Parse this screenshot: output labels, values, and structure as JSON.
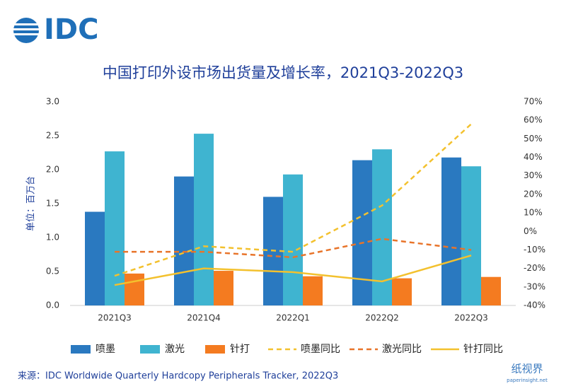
{
  "logo": "IDC",
  "chart_data": {
    "type": "bar",
    "title": "中国打印外设市场出货量及增长率，2021Q3-2022Q3",
    "y_label": "单位：百万台",
    "categories": [
      "2021Q3",
      "2021Q4",
      "2022Q1",
      "2022Q2",
      "2022Q3"
    ],
    "series": [
      {
        "name": "喷墨",
        "type": "bar",
        "color": "#2a79c0",
        "values": [
          1.38,
          1.9,
          1.6,
          2.14,
          2.18
        ]
      },
      {
        "name": "激光",
        "type": "bar",
        "color": "#3fb4d0",
        "values": [
          2.27,
          2.53,
          1.93,
          2.3,
          2.05
        ]
      },
      {
        "name": "针打",
        "type": "bar",
        "color": "#f47b20",
        "values": [
          0.47,
          0.51,
          0.43,
          0.4,
          0.42
        ]
      },
      {
        "name": "喷墨同比",
        "type": "line",
        "dash": true,
        "axis": "y2",
        "color": "#f3c12e",
        "values": [
          -24,
          -8,
          -11,
          14,
          58
        ]
      },
      {
        "name": "激光同比",
        "type": "line",
        "dash": true,
        "axis": "y2",
        "color": "#e8742a",
        "values": [
          -11,
          -11,
          -14,
          -4,
          -10
        ]
      },
      {
        "name": "针打同比",
        "type": "line",
        "dash": false,
        "axis": "y2",
        "color": "#f3c12e",
        "values": [
          -29,
          -20,
          -22,
          -27,
          -13
        ]
      }
    ],
    "ylim": [
      0,
      3
    ],
    "yticks": [
      {
        "value": 0,
        "label": "0.0"
      },
      {
        "value": 0.5,
        "label": "0.5"
      },
      {
        "value": 1,
        "label": "1.0"
      },
      {
        "value": 1.5,
        "label": "1.5"
      },
      {
        "value": 2,
        "label": "2.0"
      },
      {
        "value": 2.5,
        "label": "2.5"
      },
      {
        "value": 3,
        "label": "3.0"
      }
    ],
    "y2lim": [
      -40,
      70
    ],
    "y2ticks": [
      {
        "value": -40,
        "label": "-40%"
      },
      {
        "value": -30,
        "label": "-30%"
      },
      {
        "value": -20,
        "label": "-20%"
      },
      {
        "value": -10,
        "label": "-10%"
      },
      {
        "value": 0,
        "label": "0%"
      },
      {
        "value": 10,
        "label": "10%"
      },
      {
        "value": 20,
        "label": "20%"
      },
      {
        "value": 30,
        "label": "30%"
      },
      {
        "value": 40,
        "label": "40%"
      },
      {
        "value": 50,
        "label": "50%"
      },
      {
        "value": 60,
        "label": "60%"
      },
      {
        "value": 70,
        "label": "70%"
      }
    ],
    "grid": false,
    "legend": "bottom",
    "source": "来源：IDC Worldwide Quarterly Hardcopy Peripherals Tracker, 2022Q3",
    "watermark": {
      "name": "纸视界",
      "url": "paperinsight.net"
    }
  }
}
